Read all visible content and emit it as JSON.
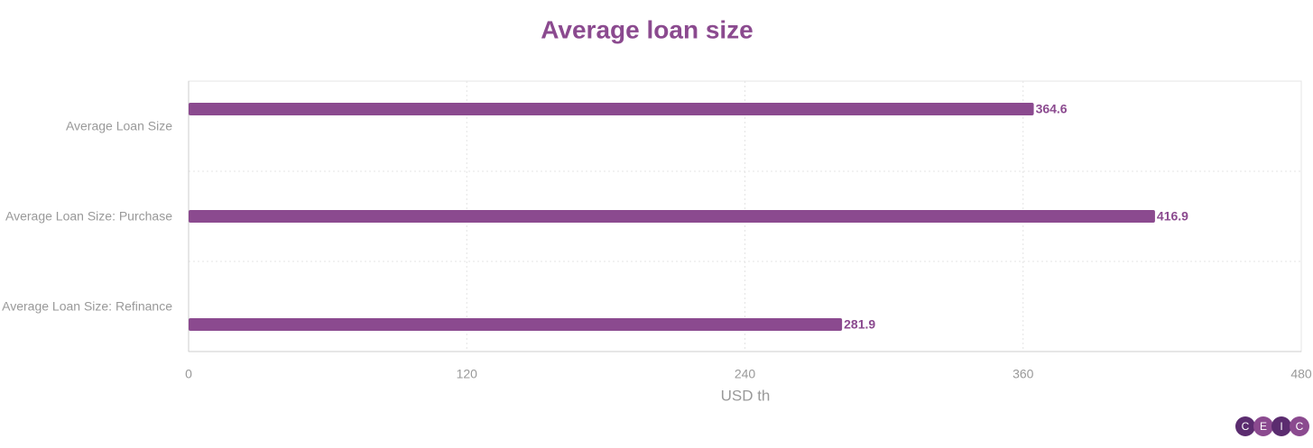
{
  "chart_data": {
    "type": "bar",
    "orientation": "horizontal",
    "title": "Average loan size",
    "categories": [
      "Average Loan Size",
      "Average Loan Size: Purchase",
      "Average Loan Size: Refinance"
    ],
    "values": [
      364.6,
      416.9,
      281.9
    ],
    "color": "#8b4a8f",
    "xlabel": "USD th",
    "xlim": [
      0,
      480
    ],
    "xticks": [
      0,
      120,
      240,
      360,
      480
    ],
    "grid": true
  },
  "logo": [
    "C",
    "E",
    "I",
    "C"
  ]
}
